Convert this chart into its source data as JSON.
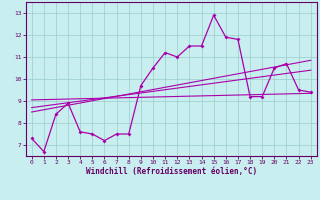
{
  "xlabel": "Windchill (Refroidissement éolien,°C)",
  "bg_color": "#c8eef0",
  "line_color": "#aa00aa",
  "grid_color": "#99cccc",
  "axis_color": "#660066",
  "text_color": "#660066",
  "xlim": [
    -0.5,
    23.5
  ],
  "ylim": [
    6.5,
    13.5
  ],
  "xticks": [
    0,
    1,
    2,
    3,
    4,
    5,
    6,
    7,
    8,
    9,
    10,
    11,
    12,
    13,
    14,
    15,
    16,
    17,
    18,
    19,
    20,
    21,
    22,
    23
  ],
  "yticks": [
    7,
    8,
    9,
    10,
    11,
    12,
    13
  ],
  "main_x": [
    0,
    1,
    2,
    3,
    4,
    5,
    6,
    7,
    8,
    9,
    10,
    11,
    12,
    13,
    14,
    15,
    16,
    17,
    18,
    19,
    20,
    21,
    22,
    23
  ],
  "main_y": [
    7.3,
    6.7,
    8.4,
    8.9,
    7.6,
    7.5,
    7.2,
    7.5,
    7.5,
    9.7,
    10.5,
    11.2,
    11.0,
    11.5,
    11.5,
    12.9,
    11.9,
    11.8,
    9.2,
    9.2,
    10.5,
    10.7,
    9.5,
    9.4
  ],
  "line1_x": [
    0,
    23
  ],
  "line1_y": [
    8.7,
    10.4
  ],
  "line2_x": [
    0,
    23
  ],
  "line2_y": [
    8.5,
    10.85
  ],
  "line3_x": [
    0,
    23
  ],
  "line3_y": [
    9.05,
    9.35
  ],
  "tick_fontsize": 4.5,
  "label_fontsize": 5.5
}
